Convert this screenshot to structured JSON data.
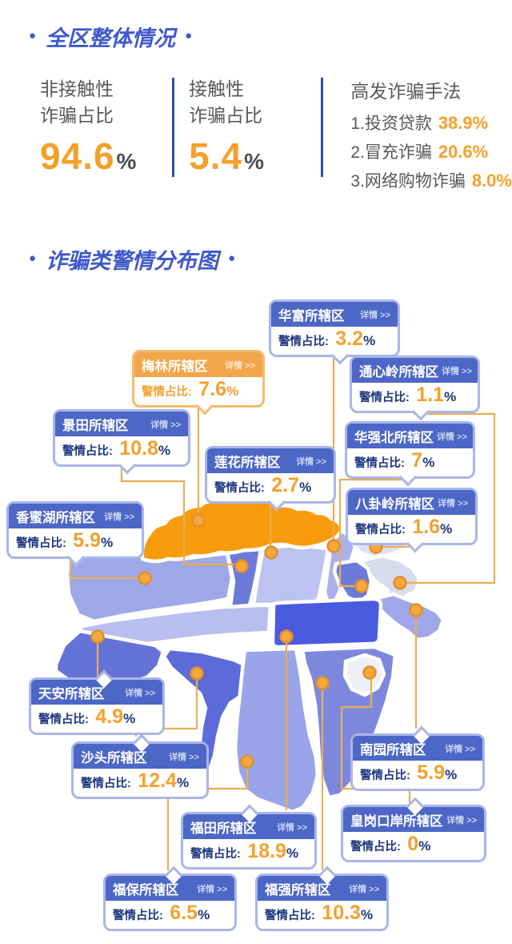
{
  "decor": {
    "bullet": "●"
  },
  "colors": {
    "title_blue": "#3f58cc",
    "divider_blue": "#2d4fa5",
    "gray_text": "#58585c",
    "accent_orange": "#f5a02b",
    "navy": "#1c357e",
    "header_blue": "#4d67c7",
    "border_blue": "#a9b6e9",
    "connector_line": "#e9ad52",
    "marker_fill": "#f5a93d",
    "marker_ring": "#e08e2e"
  },
  "overview": {
    "title": "全区整体情况",
    "stats": [
      {
        "label1": "非接触性",
        "label2": "诈骗占比",
        "value": "94.6",
        "unit": "%"
      },
      {
        "label1": "接触性",
        "label2": "诈骗占比",
        "value": "5.4",
        "unit": "%"
      }
    ],
    "methods": {
      "title": "高发诈骗手法",
      "items": [
        {
          "label": "1.投资贷款",
          "value": "38.9%"
        },
        {
          "label": "2.冒充诈骗",
          "value": "20.6%"
        },
        {
          "label": "3.网络购物诈骗",
          "value": "8.0%"
        }
      ]
    }
  },
  "map_section": {
    "title": "诈骗类警情分布图",
    "value_label": "警情占比:",
    "detail_label": "详情 >>",
    "stations": [
      {
        "id": "huafu",
        "name": "华富所辖区",
        "value": "3.2",
        "unit": "%",
        "theme": "blue"
      },
      {
        "id": "meilin",
        "name": "梅林所辖区",
        "value": "7.6",
        "unit": "%",
        "theme": "orange"
      },
      {
        "id": "tongxinling",
        "name": "通心岭所辖区",
        "value": "1.1",
        "unit": "%",
        "theme": "blue"
      },
      {
        "id": "jingtian",
        "name": "景田所辖区",
        "value": "10.8",
        "unit": "%",
        "theme": "blue"
      },
      {
        "id": "huaqiangbei",
        "name": "华强北所辖区",
        "value": "7",
        "unit": "%",
        "theme": "blue"
      },
      {
        "id": "lianhua",
        "name": "莲花所辖区",
        "value": "2.7",
        "unit": "%",
        "theme": "blue"
      },
      {
        "id": "bagualing",
        "name": "八卦岭所辖区",
        "value": "1.6",
        "unit": "%",
        "theme": "blue"
      },
      {
        "id": "xiangmihu",
        "name": "香蜜湖所辖区",
        "value": "5.9",
        "unit": "%",
        "theme": "blue"
      },
      {
        "id": "tianan",
        "name": "天安所辖区",
        "value": "4.9",
        "unit": "%",
        "theme": "blue"
      },
      {
        "id": "shatou",
        "name": "沙头所辖区",
        "value": "12.4",
        "unit": "%",
        "theme": "blue"
      },
      {
        "id": "nanyuan",
        "name": "南园所辖区",
        "value": "5.9",
        "unit": "%",
        "theme": "blue"
      },
      {
        "id": "futian",
        "name": "福田所辖区",
        "value": "18.9",
        "unit": "%",
        "theme": "blue"
      },
      {
        "id": "huanggang",
        "name": "皇岗口岸所辖区",
        "value": "0",
        "unit": "%",
        "theme": "blue"
      },
      {
        "id": "fubao",
        "name": "福保所辖区",
        "value": "6.5",
        "unit": "%",
        "theme": "blue"
      },
      {
        "id": "fuqiang",
        "name": "福强所辖区",
        "value": "10.3",
        "unit": "%",
        "theme": "blue"
      }
    ],
    "region_colors": {
      "meilin": "#f89c0e",
      "jingtian_strip": "#6c7ada",
      "lianhua": "#bdc3f0",
      "huafu": "#a9b2ea",
      "bagualing": "#dce0f0",
      "tongxinling": "#d8dcec",
      "huaqiangbei": "#6c7ada",
      "nanyuan": "#9ea7e7",
      "futian_bar": "#4a5be0",
      "xiangmihu": "#9ea8e7",
      "west_band": "#b8beee",
      "tianan": "#6573d8",
      "shatou": "#5d6bd8",
      "fubao": "#9aa4e8",
      "fuqiang": "#7d88dd",
      "huanggang": "#eef0f8"
    }
  }
}
